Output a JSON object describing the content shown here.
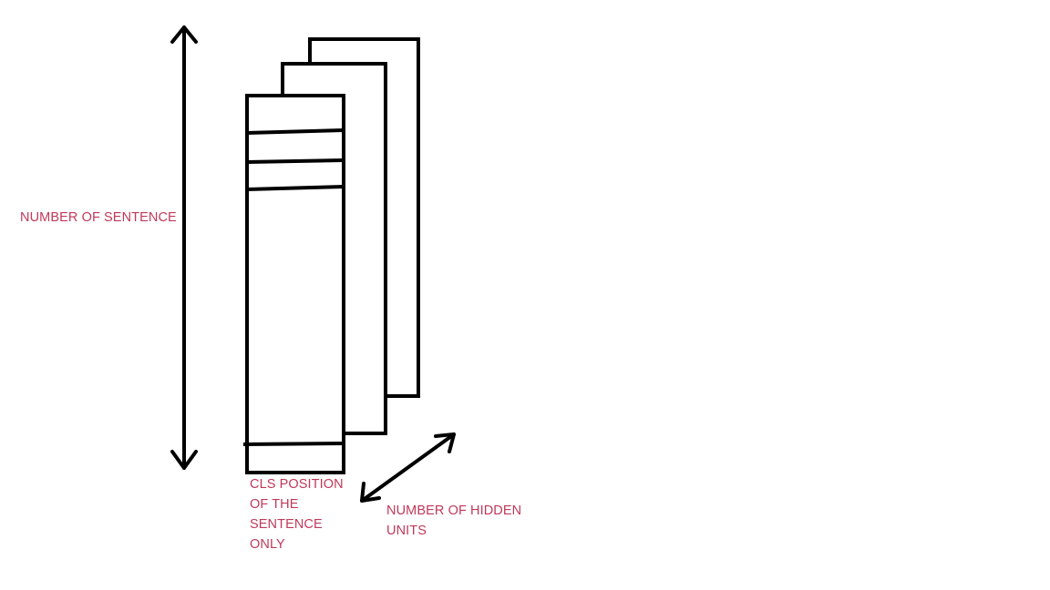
{
  "colors": {
    "stroke": "#000000",
    "label_text": "#c0395a",
    "background": "#ffffff"
  },
  "labels": {
    "number_of_sentence": "NUMBER OF SENTENCE",
    "cls_position": [
      "CLS POSITION",
      "OF THE",
      "SENTENCE",
      "ONLY"
    ],
    "number_of_hidden_units": [
      "NUMBER OF HIDDEN",
      "UNITS"
    ]
  }
}
